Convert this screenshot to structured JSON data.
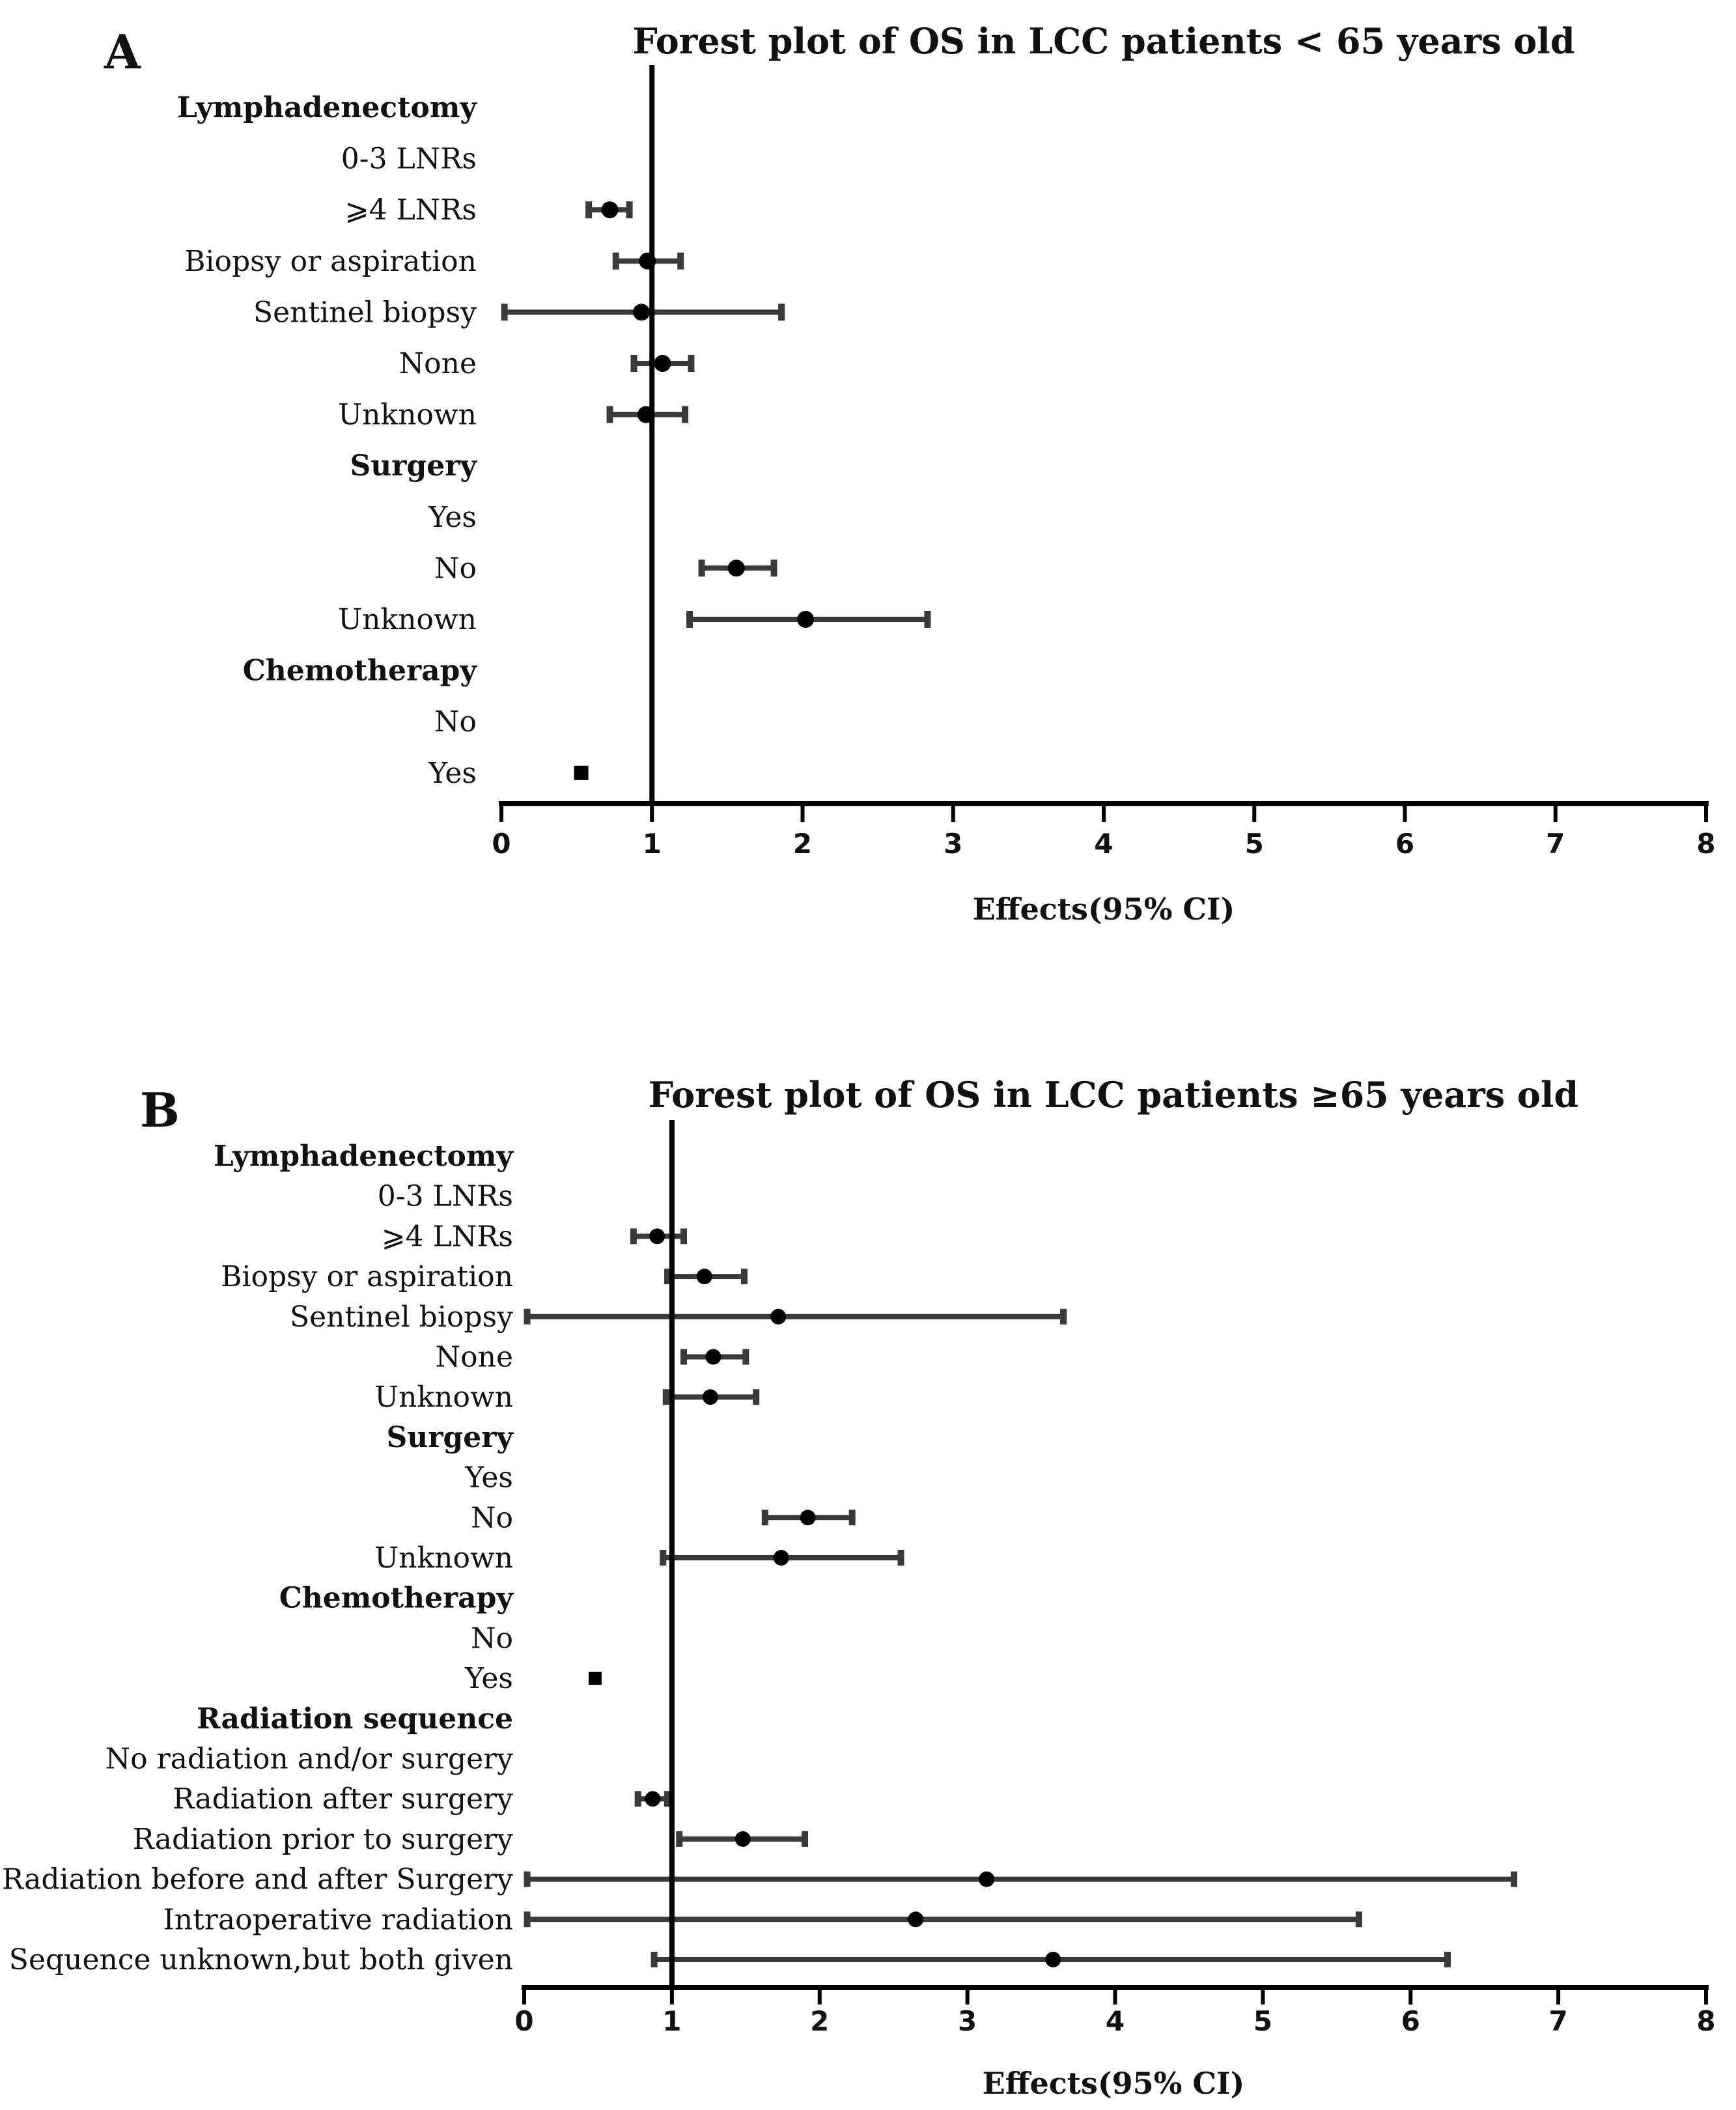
{
  "chart_data": [
    {
      "type": "forest",
      "panel_label": "A",
      "title": "Forest plot of OS in LCC patients < 65 years old",
      "xlabel": "Effects(95% CI)",
      "xlim": [
        0,
        8
      ],
      "xticks": [
        "0",
        "1",
        "2",
        "3",
        "4",
        "5",
        "6",
        "7",
        "8"
      ],
      "reference_line": 1,
      "rows": [
        {
          "label": "Lymphadenectomy",
          "header": true
        },
        {
          "label": "0-3 LNRs"
        },
        {
          "label": "⩾4 LNRs",
          "est": 0.72,
          "lo": 0.58,
          "hi": 0.85
        },
        {
          "label": "Biopsy or aspiration",
          "est": 0.97,
          "lo": 0.76,
          "hi": 1.19
        },
        {
          "label": "Sentinel biopsy",
          "est": 0.93,
          "lo": 0.02,
          "hi": 1.86
        },
        {
          "label": "None",
          "est": 1.07,
          "lo": 0.88,
          "hi": 1.26
        },
        {
          "label": "Unknown",
          "est": 0.96,
          "lo": 0.72,
          "hi": 1.22
        },
        {
          "label": "Surgery",
          "header": true
        },
        {
          "label": "Yes"
        },
        {
          "label": "No",
          "est": 1.56,
          "lo": 1.33,
          "hi": 1.81
        },
        {
          "label": "Unknown",
          "est": 2.02,
          "lo": 1.25,
          "hi": 2.83
        },
        {
          "label": "Chemotherapy",
          "header": true
        },
        {
          "label": "No"
        },
        {
          "label": "Yes",
          "est": 0.53,
          "marker": "square"
        }
      ]
    },
    {
      "type": "forest",
      "panel_label": "B",
      "title": "Forest plot of OS in LCC patients ≥65 years old",
      "xlabel": "Effects(95% CI)",
      "xlim": [
        0,
        8
      ],
      "xticks": [
        "0",
        "1",
        "2",
        "3",
        "4",
        "5",
        "6",
        "7",
        "8"
      ],
      "reference_line": 1,
      "rows": [
        {
          "label": "Lymphadenectomy",
          "header": true
        },
        {
          "label": "0-3 LNRs"
        },
        {
          "label": "⩾4 LNRs",
          "est": 0.9,
          "lo": 0.74,
          "hi": 1.08
        },
        {
          "label": "Biopsy or aspiration",
          "est": 1.22,
          "lo": 0.97,
          "hi": 1.49
        },
        {
          "label": "Sentinel biopsy",
          "est": 1.72,
          "lo": 0.02,
          "hi": 3.65
        },
        {
          "label": "None",
          "est": 1.28,
          "lo": 1.08,
          "hi": 1.5
        },
        {
          "label": "Unknown",
          "est": 1.26,
          "lo": 0.96,
          "hi": 1.57
        },
        {
          "label": "Surgery",
          "header": true
        },
        {
          "label": "Yes"
        },
        {
          "label": "No",
          "est": 1.92,
          "lo": 1.63,
          "hi": 2.22
        },
        {
          "label": "Unknown",
          "est": 1.74,
          "lo": 0.94,
          "hi": 2.55
        },
        {
          "label": "Chemotherapy",
          "header": true
        },
        {
          "label": "No"
        },
        {
          "label": "Yes",
          "est": 0.48,
          "marker": "square"
        },
        {
          "label": "Radiation sequence",
          "header": true
        },
        {
          "label": "No radiation and/or surgery"
        },
        {
          "label": "Radiation after surgery",
          "est": 0.87,
          "lo": 0.77,
          "hi": 0.97
        },
        {
          "label": "Radiation prior to surgery",
          "est": 1.48,
          "lo": 1.05,
          "hi": 1.9
        },
        {
          "label": "Radiation before and after Surgery",
          "est": 3.13,
          "lo": 0.02,
          "hi": 6.7
        },
        {
          "label": "Intraoperative radiation",
          "est": 2.65,
          "lo": 0.02,
          "hi": 5.65
        },
        {
          "label": "Sequence unknown,but both given",
          "est": 3.58,
          "lo": 0.88,
          "hi": 6.25
        }
      ]
    }
  ]
}
